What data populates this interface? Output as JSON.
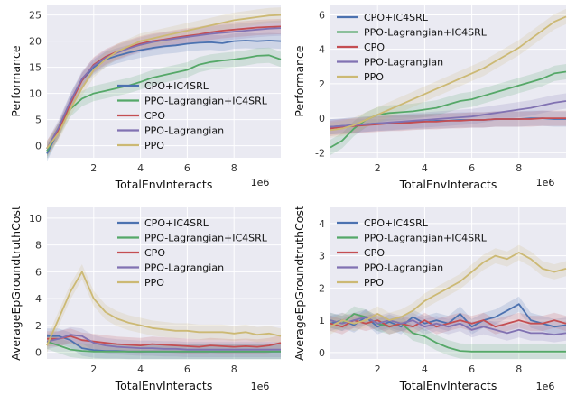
{
  "colors": {
    "CPO+IC4SRL": "#4c72b0",
    "PPO-Lagrangian+IC4SRL": "#55a868",
    "CPO": "#c44e52",
    "PPO-Lagrangian": "#8172b2",
    "PPO": "#ccb974",
    "axes_bg": "#eaeaf2",
    "grid": "#ffffff"
  },
  "chart_data": [
    {
      "type": "line",
      "xlabel": "TotalEnvInteracts",
      "x_exponent": "1e6",
      "ylabel": "Performance",
      "xlim": [
        0,
        10
      ],
      "ylim": [
        -2.3,
        27
      ],
      "xticks": [
        2,
        4,
        6,
        8
      ],
      "yticks": [
        0,
        5,
        10,
        15,
        20,
        25
      ],
      "grid": true,
      "legend_position": "center-right",
      "x": [
        0,
        0.5,
        1,
        1.5,
        2,
        2.5,
        3,
        3.5,
        4,
        4.5,
        5,
        5.5,
        6,
        6.5,
        7,
        7.5,
        8,
        8.5,
        9,
        9.5,
        10
      ],
      "series": [
        {
          "name": "CPO+IC4SRL",
          "values": [
            -1.5,
            3,
            8.5,
            12.5,
            15,
            16.5,
            17.2,
            17.8,
            18.3,
            18.7,
            19,
            19.2,
            19.5,
            19.7,
            19.8,
            19.6,
            20,
            20.1,
            20,
            20.1,
            20
          ]
        },
        {
          "name": "PPO-Lagrangian+IC4SRL",
          "values": [
            -1,
            3,
            7,
            9,
            10,
            10.5,
            11,
            11.5,
            12.2,
            13,
            13.5,
            14,
            14.5,
            15.5,
            16,
            16.3,
            16.5,
            16.8,
            17.2,
            17.3,
            16.5
          ]
        },
        {
          "name": "CPO",
          "values": [
            -0.5,
            3,
            8,
            12.5,
            15.5,
            17,
            18,
            18.8,
            19.5,
            20,
            20.3,
            20.7,
            21,
            21.3,
            21.7,
            22,
            22.2,
            22.4,
            22.6,
            22.7,
            22.8
          ]
        },
        {
          "name": "PPO-Lagrangian",
          "values": [
            -0.6,
            3.5,
            8.5,
            12.8,
            15.3,
            16.8,
            17.8,
            18.6,
            19.3,
            19.8,
            20.2,
            20.5,
            20.8,
            21.1,
            21.4,
            21.6,
            21.8,
            22,
            22.2,
            22.4,
            22.5
          ]
        },
        {
          "name": "PPO",
          "values": [
            -0.5,
            2.5,
            7,
            11,
            14.5,
            16.5,
            18,
            19,
            20,
            20.5,
            21,
            21.5,
            22,
            22.5,
            23,
            23.5,
            24,
            24.3,
            24.6,
            24.9,
            25
          ]
        }
      ]
    },
    {
      "type": "line",
      "xlabel": "TotalEnvInteracts",
      "x_exponent": "1e6",
      "ylabel": "Performance",
      "xlim": [
        0,
        10
      ],
      "ylim": [
        -2.3,
        6.6
      ],
      "xticks": [
        2,
        4,
        6,
        8
      ],
      "yticks": [
        -2,
        0,
        2,
        4,
        6
      ],
      "grid": true,
      "legend_position": "upper-left",
      "x": [
        0,
        0.5,
        1,
        1.5,
        2,
        2.5,
        3,
        3.5,
        4,
        4.5,
        5,
        5.5,
        6,
        6.5,
        7,
        7.5,
        8,
        8.5,
        9,
        9.5,
        10
      ],
      "series": [
        {
          "name": "CPO+IC4SRL",
          "values": [
            -0.5,
            -0.45,
            -0.4,
            -0.35,
            -0.3,
            -0.3,
            -0.25,
            -0.2,
            -0.2,
            -0.15,
            -0.15,
            -0.1,
            -0.1,
            -0.1,
            -0.05,
            -0.05,
            -0.05,
            0,
            0,
            -0.05,
            -0.05
          ]
        },
        {
          "name": "PPO-Lagrangian+IC4SRL",
          "values": [
            -1.7,
            -1.3,
            -0.6,
            -0.1,
            0.2,
            0.3,
            0.35,
            0.4,
            0.5,
            0.6,
            0.8,
            1.0,
            1.1,
            1.3,
            1.5,
            1.7,
            1.9,
            2.1,
            2.3,
            2.6,
            2.7
          ]
        },
        {
          "name": "CPO",
          "values": [
            -0.6,
            -0.5,
            -0.45,
            -0.4,
            -0.35,
            -0.3,
            -0.3,
            -0.25,
            -0.2,
            -0.2,
            -0.15,
            -0.15,
            -0.1,
            -0.1,
            -0.05,
            -0.05,
            -0.05,
            -0.05,
            0,
            0,
            0
          ]
        },
        {
          "name": "PPO-Lagrangian",
          "values": [
            -0.5,
            -0.45,
            -0.4,
            -0.35,
            -0.3,
            -0.25,
            -0.2,
            -0.15,
            -0.1,
            -0.05,
            0,
            0.05,
            0.1,
            0.2,
            0.3,
            0.4,
            0.5,
            0.6,
            0.75,
            0.9,
            1.0
          ]
        },
        {
          "name": "PPO",
          "values": [
            -0.7,
            -0.6,
            -0.4,
            -0.1,
            0.2,
            0.5,
            0.8,
            1.1,
            1.4,
            1.7,
            2.0,
            2.3,
            2.6,
            2.9,
            3.3,
            3.7,
            4.1,
            4.6,
            5.1,
            5.6,
            5.9
          ]
        }
      ]
    },
    {
      "type": "line",
      "xlabel": "TotalEnvInteracts",
      "x_exponent": "1e6",
      "ylabel": "AverageEpGroundtruthCost",
      "xlim": [
        0,
        10
      ],
      "ylim": [
        -0.5,
        10.8
      ],
      "xticks": [
        2,
        4,
        6,
        8
      ],
      "yticks": [
        0,
        2,
        4,
        6,
        8,
        10
      ],
      "grid": true,
      "legend_position": "upper-center",
      "x": [
        0,
        0.5,
        1,
        1.5,
        2,
        2.5,
        3,
        3.5,
        4,
        4.5,
        5,
        5.5,
        6,
        6.5,
        7,
        7.5,
        8,
        8.5,
        9,
        9.5,
        10
      ],
      "series": [
        {
          "name": "CPO+IC4SRL",
          "values": [
            1.2,
            1.2,
            0.9,
            0.3,
            0.15,
            0.1,
            0.1,
            0.05,
            0.05,
            0.05,
            0.05,
            0.05,
            0.05,
            0.05,
            0.05,
            0.05,
            0.05,
            0.05,
            0.05,
            0.05,
            0.05
          ]
        },
        {
          "name": "PPO-Lagrangian+IC4SRL",
          "values": [
            0.8,
            0.5,
            0.2,
            0.1,
            0.05,
            0.05,
            0.05,
            0.05,
            0.05,
            0.05,
            0.05,
            0.05,
            0.05,
            0.05,
            0.05,
            0.05,
            0.05,
            0.05,
            0.05,
            0.05,
            0.05
          ]
        },
        {
          "name": "CPO",
          "values": [
            1.0,
            1.0,
            1.2,
            0.9,
            0.8,
            0.7,
            0.6,
            0.55,
            0.5,
            0.6,
            0.55,
            0.5,
            0.45,
            0.4,
            0.5,
            0.45,
            0.4,
            0.45,
            0.4,
            0.5,
            0.7
          ]
        },
        {
          "name": "PPO-Lagrangian",
          "values": [
            0.8,
            1.0,
            1.3,
            1.2,
            0.7,
            0.5,
            0.4,
            0.35,
            0.3,
            0.3,
            0.25,
            0.25,
            0.2,
            0.2,
            0.2,
            0.2,
            0.2,
            0.2,
            0.2,
            0.2,
            0.2
          ]
        },
        {
          "name": "PPO",
          "values": [
            0.5,
            2.5,
            4.5,
            6,
            4,
            3,
            2.5,
            2.2,
            2,
            1.8,
            1.7,
            1.6,
            1.6,
            1.5,
            1.5,
            1.5,
            1.4,
            1.5,
            1.3,
            1.4,
            1.2
          ]
        }
      ]
    },
    {
      "type": "line",
      "xlabel": "TotalEnvInteracts",
      "x_exponent": "1e6",
      "ylabel": "AverageEpGroundtruthCost",
      "xlim": [
        0,
        10
      ],
      "ylim": [
        -0.2,
        4.5
      ],
      "xticks": [
        2,
        4,
        6,
        8
      ],
      "yticks": [
        0,
        1,
        2,
        3,
        4
      ],
      "grid": true,
      "legend_position": "upper-left",
      "x": [
        0,
        0.5,
        1,
        1.5,
        2,
        2.5,
        3,
        3.5,
        4,
        4.5,
        5,
        5.5,
        6,
        6.5,
        7,
        7.5,
        8,
        8.5,
        9,
        9.5,
        10
      ],
      "series": [
        {
          "name": "CPO+IC4SRL",
          "values": [
            0.9,
            1.0,
            0.85,
            1.1,
            0.8,
            0.95,
            0.8,
            1.1,
            0.9,
            1.0,
            0.9,
            1.2,
            0.8,
            1.0,
            1.1,
            1.3,
            1.5,
            1.0,
            0.9,
            0.8,
            0.85
          ]
        },
        {
          "name": "PPO-Lagrangian+IC4SRL",
          "values": [
            1.0,
            0.9,
            1.2,
            1.1,
            0.9,
            0.8,
            0.9,
            0.6,
            0.5,
            0.3,
            0.15,
            0.05,
            0.03,
            0.03,
            0.03,
            0.03,
            0.03,
            0.03,
            0.03,
            0.03,
            0.03
          ]
        },
        {
          "name": "CPO",
          "values": [
            0.9,
            0.8,
            1.0,
            0.9,
            1.0,
            0.8,
            0.9,
            0.8,
            1.0,
            0.8,
            0.9,
            1.0,
            0.9,
            1.0,
            0.8,
            0.9,
            1.0,
            0.9,
            0.9,
            1.0,
            0.9
          ]
        },
        {
          "name": "PPO-Lagrangian",
          "values": [
            1.0,
            0.9,
            1.0,
            1.1,
            0.9,
            1.0,
            0.9,
            1.0,
            0.8,
            0.9,
            0.8,
            0.9,
            0.7,
            0.8,
            0.7,
            0.6,
            0.7,
            0.6,
            0.6,
            0.55,
            0.6
          ]
        },
        {
          "name": "PPO",
          "values": [
            0.8,
            1.0,
            0.9,
            1.0,
            1.2,
            1.0,
            1.1,
            1.3,
            1.6,
            1.8,
            2.0,
            2.2,
            2.5,
            2.8,
            3.0,
            2.9,
            3.1,
            2.9,
            2.6,
            2.5,
            2.6
          ]
        }
      ]
    }
  ]
}
